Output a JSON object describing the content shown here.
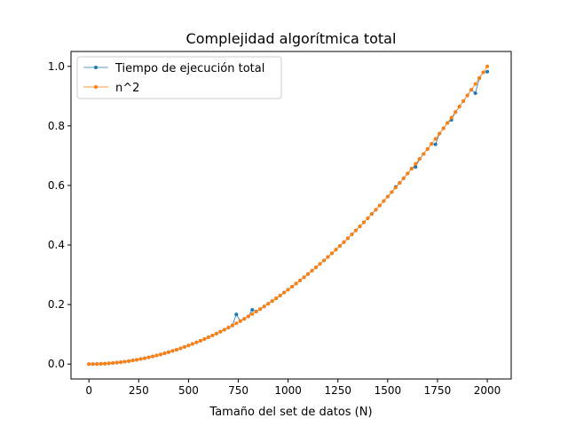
{
  "chart_data": {
    "type": "line",
    "title": "Complejidad algorítmica total",
    "xlabel": "Tamaño del set de datos (N)",
    "ylabel": "",
    "xlim": [
      -90,
      2120
    ],
    "ylim": [
      -0.05,
      1.05
    ],
    "x_ticks": [
      0,
      250,
      500,
      750,
      1000,
      1250,
      1500,
      1750,
      2000
    ],
    "x_tick_labels": [
      "0",
      "250",
      "500",
      "750",
      "1000",
      "1250",
      "1500",
      "1750",
      "2000"
    ],
    "y_ticks": [
      0.0,
      0.2,
      0.4,
      0.6,
      0.8,
      1.0
    ],
    "y_tick_labels": [
      "0.0",
      "0.2",
      "0.4",
      "0.6",
      "0.8",
      "1.0"
    ],
    "grid": false,
    "legend_position": "upper-left",
    "x_start": 0,
    "x_step": 20,
    "x_count": 101,
    "series": [
      {
        "name": "Tiempo de ejecución total",
        "color": "#1f77b4",
        "formula": "square",
        "x_max": 2020,
        "outliers": [
          {
            "x": 740,
            "y": 0.167
          },
          {
            "x": 820,
            "y": 0.182
          },
          {
            "x": 1540,
            "y": 0.595
          },
          {
            "x": 1640,
            "y": 0.662
          },
          {
            "x": 1740,
            "y": 0.738
          },
          {
            "x": 1820,
            "y": 0.82
          },
          {
            "x": 1940,
            "y": 0.91
          },
          {
            "x": 2000,
            "y": 0.982
          },
          {
            "x": 2020,
            "y": 1.0
          }
        ]
      },
      {
        "name": "n^2",
        "color": "#ff7f0e",
        "formula": "square",
        "x_max": 2020
      }
    ]
  }
}
